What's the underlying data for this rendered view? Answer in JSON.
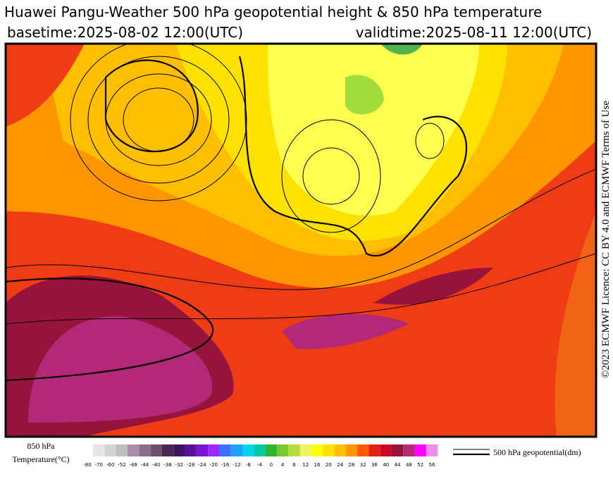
{
  "header": {
    "title": "Huawei Pangu-Weather 500 hPa geopotential height & 850 hPa temperature",
    "basetime": "basetime:2025-08-02 12:00(UTC)",
    "validtime": "validtime:2025-08-11 12:00(UTC)"
  },
  "licence": "©2023 ECMWF Licence: CC BY 4.0 and ECMWF Terms of Use",
  "legend": {
    "title_lines": [
      "850 hPa",
      "Temperature(°C)"
    ],
    "colorbar": {
      "labels": [
        -80,
        -70,
        -60,
        -52,
        -48,
        -44,
        -40,
        -36,
        -32,
        -28,
        -24,
        -20,
        -16,
        -12,
        -8,
        -4,
        0,
        4,
        8,
        12,
        16,
        20,
        24,
        28,
        32,
        36,
        40,
        44,
        48,
        52,
        56
      ],
      "colors": [
        "#e6e6e6",
        "#d2d2d2",
        "#bebebe",
        "#a88ca8",
        "#8c6e8c",
        "#6e506e",
        "#4b2850",
        "#3c1464",
        "#5a0f9b",
        "#7814d2",
        "#9b28ff",
        "#3c6eff",
        "#1ea0ff",
        "#00d2f0",
        "#00c8a0",
        "#32b432",
        "#78c832",
        "#b4dc3c",
        "#f0f064",
        "#ffff00",
        "#ffe100",
        "#ffbe00",
        "#ff9600",
        "#ff5a00",
        "#e61e14",
        "#c80a28",
        "#96143c",
        "#b42878",
        "#ff00ff",
        "#f08cf0"
      ]
    },
    "line_label": "500 hPa geopotential(dm)"
  }
}
